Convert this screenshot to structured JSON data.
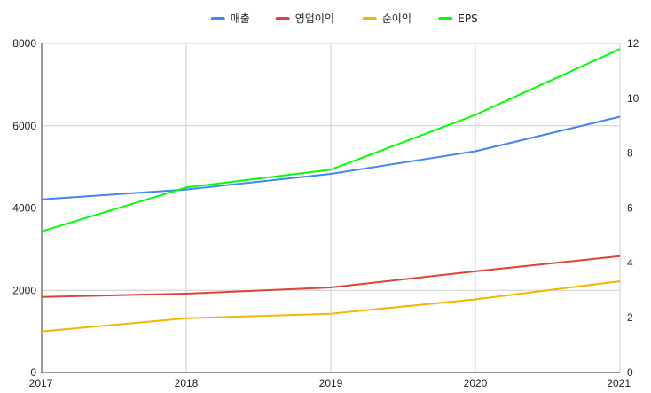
{
  "chart_data": {
    "type": "line",
    "title": "",
    "xlabel": "",
    "ylabel": "",
    "y2label": "",
    "x": [
      "2017",
      "2018",
      "2019",
      "2020",
      "2021"
    ],
    "ylim": [
      0,
      8000
    ],
    "y_ticks": [
      "0",
      "2000",
      "4000",
      "6000",
      "8000"
    ],
    "y2lim": [
      0,
      12
    ],
    "y2_ticks": [
      "0",
      "2",
      "4",
      "6",
      "8",
      "10",
      "12"
    ],
    "grid": true,
    "legend_position": "top-center",
    "series": [
      {
        "name": "매출",
        "axis": "left",
        "color": "#4285f4",
        "values": [
          4210,
          4450,
          4830,
          5380,
          6220
        ]
      },
      {
        "name": "영업이익",
        "axis": "left",
        "color": "#db4437",
        "values": [
          1840,
          1920,
          2070,
          2460,
          2830
        ]
      },
      {
        "name": "순이익",
        "axis": "left",
        "color": "#f4b400",
        "values": [
          1000,
          1320,
          1430,
          1780,
          2220
        ]
      },
      {
        "name": "EPS",
        "axis": "right",
        "color": "#00ff00",
        "values": [
          5.15,
          6.75,
          7.4,
          9.4,
          11.8
        ]
      }
    ]
  }
}
